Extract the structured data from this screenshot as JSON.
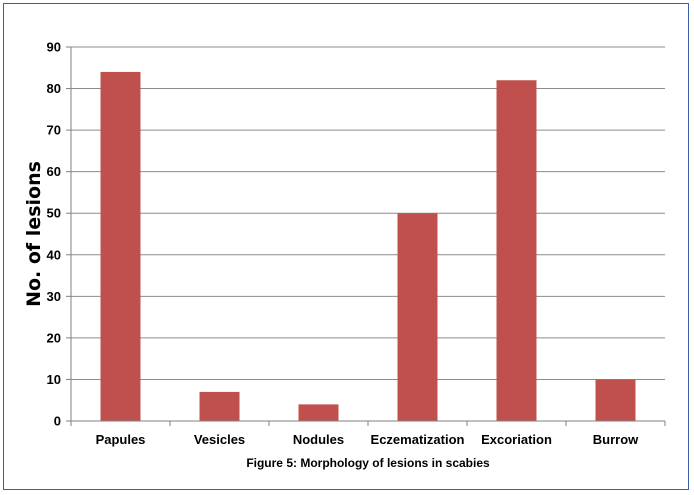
{
  "chart_data": {
    "type": "bar",
    "categories": [
      "Papules",
      "Vesicles",
      "Nodules",
      "Eczematization",
      "Excoriation",
      "Burrow"
    ],
    "values": [
      84,
      7,
      4,
      50,
      82,
      10
    ],
    "ylabel": "No. of lesions",
    "xlabel": "",
    "ylim": [
      0,
      90
    ],
    "yticks": [
      0,
      10,
      20,
      30,
      40,
      50,
      60,
      70,
      80,
      90
    ],
    "grid": true,
    "legend": "none",
    "bar_color": "#c0504d",
    "caption": "Figure 5: Morphology of lesions in scabies"
  }
}
